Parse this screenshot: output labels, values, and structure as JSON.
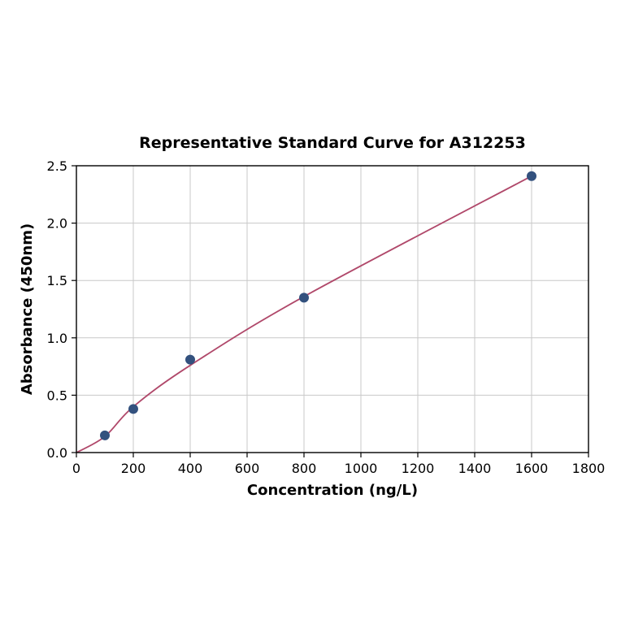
{
  "chart_data": {
    "type": "scatter",
    "title": "Representative Standard Curve for A312253",
    "xlabel": "Concentration (ng/L)",
    "ylabel": "Absorbance (450nm)",
    "xlim": [
      0,
      1800
    ],
    "ylim": [
      0.0,
      2.5
    ],
    "xticks": [
      0,
      200,
      400,
      600,
      800,
      1000,
      1200,
      1400,
      1600,
      1800
    ],
    "xtick_labels": [
      "0",
      "200",
      "400",
      "600",
      "800",
      "1000",
      "1200",
      "1400",
      "1600",
      "1800"
    ],
    "yticks": [
      0.0,
      0.5,
      1.0,
      1.5,
      2.0,
      2.5
    ],
    "ytick_labels": [
      "0.0",
      "0.5",
      "1.0",
      "1.5",
      "2.0",
      "2.5"
    ],
    "grid": true,
    "legend": "none",
    "series": [
      {
        "name": "standard-points",
        "type": "scatter",
        "x": [
          100,
          200,
          400,
          800,
          1600
        ],
        "y": [
          0.15,
          0.38,
          0.81,
          1.35,
          2.41
        ]
      },
      {
        "name": "fit-curve",
        "type": "line",
        "x": [
          0,
          100,
          200,
          400,
          800,
          1600
        ],
        "y": [
          0.0,
          0.14,
          0.4,
          0.76,
          1.36,
          2.41
        ]
      }
    ],
    "colors": {
      "point_color": "#33517e",
      "curve_color": "#b0486a",
      "grid_color": "#c8c8c8",
      "axis_color": "#000000",
      "background": "#ffffff"
    }
  }
}
